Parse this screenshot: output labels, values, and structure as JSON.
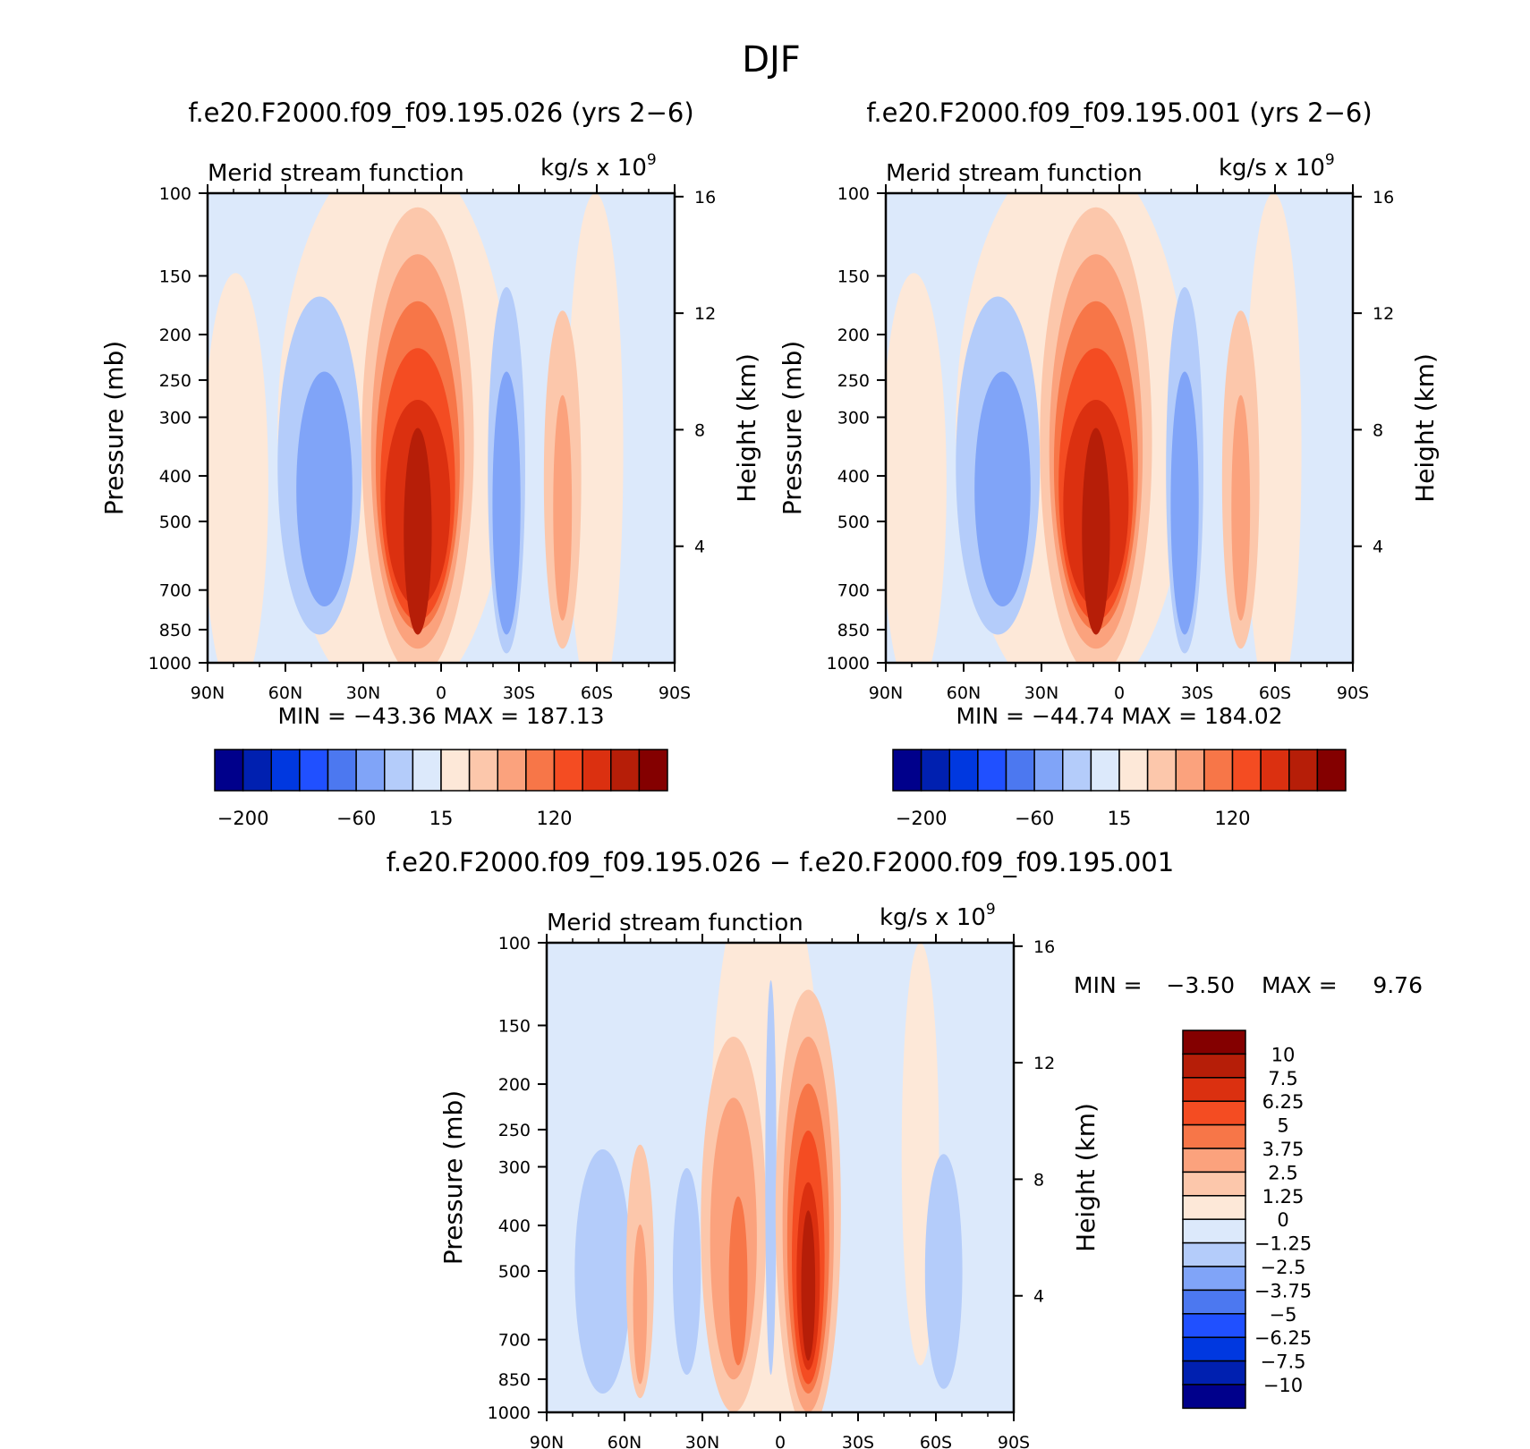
{
  "figure": {
    "title": "DJF"
  },
  "colors": {
    "abs_fill": [
      "#00008b",
      "#0020b0",
      "#0038e0",
      "#2050ff",
      "#4c78f0",
      "#80a4f8",
      "#b4ccfa",
      "#dce9fb",
      "#fde8d8",
      "#fcc7ab",
      "#fba27d",
      "#f77648",
      "#f44c22",
      "#db3010",
      "#b61e08",
      "#840000"
    ],
    "diff_fill": [
      "#840000",
      "#b61e08",
      "#db3010",
      "#f44c22",
      "#f77648",
      "#fba27d",
      "#fcc7ab",
      "#fde8d8",
      "#dce9fb",
      "#b4ccfa",
      "#80a4f8",
      "#4c78f0",
      "#2050ff",
      "#0038e0",
      "#0020b0",
      "#00008b"
    ]
  },
  "chart_data": [
    {
      "type": "contour",
      "case_title": "f.e20.F2000.f09_f09.195.026 (yrs 2−6)",
      "variable": "Merid stream function",
      "units_prefix": "kg/s x 10",
      "units_exp": "9",
      "ylabel": "Pressure (mb)",
      "y2label": "Height (km)",
      "x_ticks": [
        "90N",
        "60N",
        "30N",
        "0",
        "30S",
        "60S",
        "90S"
      ],
      "y_ticks": [
        "100",
        "150",
        "200",
        "250",
        "300",
        "400",
        "500",
        "700",
        "850",
        "1000"
      ],
      "y2_ticks": [
        "16",
        "12",
        "8",
        "4"
      ],
      "min_label": "MIN",
      "min_value": "−43.36",
      "max_label": "MAX",
      "max_value": "187.13",
      "colorbar_labels": [
        "−200",
        "−60",
        "15",
        "120"
      ]
    },
    {
      "type": "contour",
      "case_title": "f.e20.F2000.f09_f09.195.001 (yrs 2−6)",
      "variable": "Merid stream function",
      "units_prefix": "kg/s x 10",
      "units_exp": "9",
      "ylabel": "Pressure (mb)",
      "y2label": "Height (km)",
      "x_ticks": [
        "90N",
        "60N",
        "30N",
        "0",
        "30S",
        "60S",
        "90S"
      ],
      "y_ticks": [
        "100",
        "150",
        "200",
        "250",
        "300",
        "400",
        "500",
        "700",
        "850",
        "1000"
      ],
      "y2_ticks": [
        "16",
        "12",
        "8",
        "4"
      ],
      "min_label": "MIN",
      "min_value": "−44.74",
      "max_label": "MAX",
      "max_value": "184.02",
      "colorbar_labels": [
        "−200",
        "−60",
        "15",
        "120"
      ]
    },
    {
      "type": "contour",
      "case_title": "f.e20.F2000.f09_f09.195.026 − f.e20.F2000.f09_f09.195.001",
      "variable": "Merid stream function",
      "units_prefix": "kg/s x 10",
      "units_exp": "9",
      "ylabel": "Pressure (mb)",
      "y2label": "Height (km)",
      "x_ticks": [
        "90N",
        "60N",
        "30N",
        "0",
        "30S",
        "60S",
        "90S"
      ],
      "y_ticks": [
        "100",
        "150",
        "200",
        "250",
        "300",
        "400",
        "500",
        "700",
        "850",
        "1000"
      ],
      "y2_ticks": [
        "16",
        "12",
        "8",
        "4"
      ],
      "min_label": "MIN  =",
      "min_value": "−3.50",
      "max_label": "MAX  =",
      "max_value": "9.76",
      "colorbar_labels": [
        "10",
        "7.5",
        "6.25",
        "5",
        "3.75",
        "2.5",
        "1.25",
        "0",
        "−1.25",
        "−2.5",
        "−3.75",
        "−5",
        "−6.25",
        "−7.5",
        "−10"
      ]
    }
  ]
}
